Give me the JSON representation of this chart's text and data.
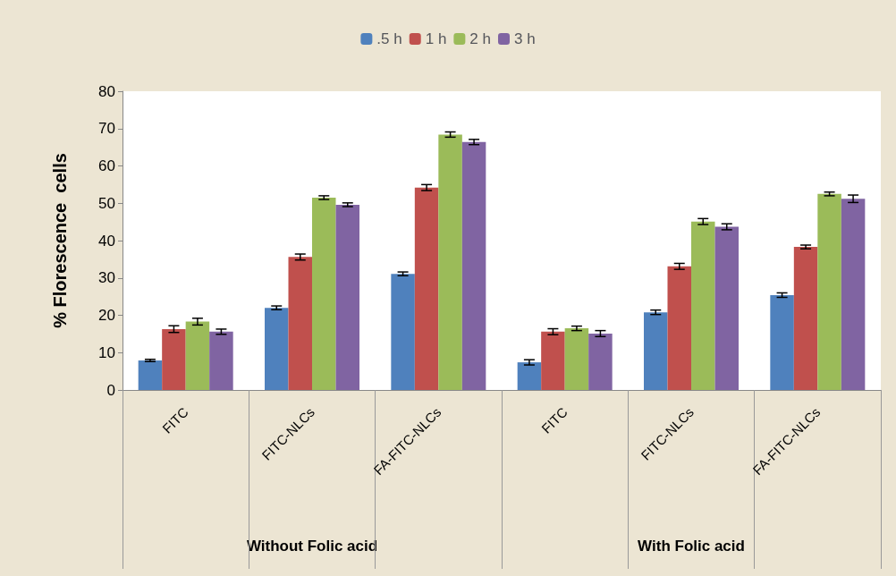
{
  "chart_data": {
    "type": "bar",
    "ylabel": "% Florescence  cells",
    "categories": [
      "FITC",
      "FITC-NLCs",
      "FA-FITC-NLCs",
      "FITC",
      "FITC-NLCs",
      "FA-FITC-NLCs"
    ],
    "series": [
      {
        "name": ".5 h",
        "color": "#4f81bd",
        "values": [
          7.9,
          22,
          31.1,
          7.4,
          20.8,
          25.4
        ],
        "errors": [
          0.3,
          0.5,
          0.5,
          0.7,
          0.6,
          0.6
        ]
      },
      {
        "name": "1 h",
        "color": "#c0504d",
        "values": [
          16.3,
          35.6,
          54.2,
          15.6,
          33.1,
          38.3
        ],
        "errors": [
          0.9,
          0.8,
          0.8,
          0.8,
          0.8,
          0.5
        ]
      },
      {
        "name": "2 h",
        "color": "#9bbb59",
        "values": [
          18.3,
          51.5,
          68.4,
          16.5,
          45.1,
          52.5
        ],
        "errors": [
          0.9,
          0.5,
          0.7,
          0.6,
          0.8,
          0.5
        ]
      },
      {
        "name": "3 h",
        "color": "#8064a2",
        "values": [
          15.6,
          49.6,
          66.4,
          15.1,
          43.7,
          51.2
        ],
        "errors": [
          0.7,
          0.5,
          0.7,
          0.8,
          0.8,
          1.0
        ]
      }
    ],
    "ylim": [
      0,
      80
    ],
    "yticks": [
      0,
      10,
      20,
      30,
      40,
      50,
      60,
      70,
      80
    ],
    "grid": false,
    "legend": "top",
    "annotations": [
      "Without Folic acid",
      "With Folic acid"
    ]
  }
}
